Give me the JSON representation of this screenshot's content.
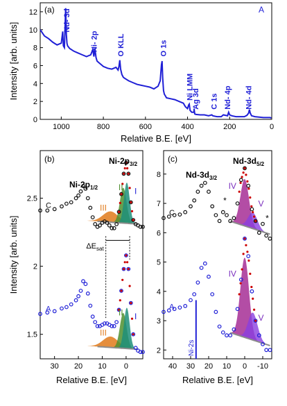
{
  "colors": {
    "blue": "#1f1fd6",
    "black": "#111111",
    "red": "#cc0000",
    "teal": "#1f8f7a",
    "orange": "#e07a1a",
    "green": "#4f8f2f",
    "purple": "#7b2fbe",
    "magenta": "#a0208f",
    "violet": "#8a3fe0",
    "gray": "#8c8c8c"
  },
  "chart_data": [
    {
      "id": "a",
      "type": "line",
      "panel_label": "(a)",
      "sample_label": "A",
      "xlabel": "Relative B.E. [eV]",
      "ylabel": "Intensity [arb. units]",
      "xlim": [
        1100,
        0
      ],
      "ylim": [
        0,
        13
      ],
      "xticks": [
        1000,
        800,
        600,
        400,
        200,
        0
      ],
      "yticks": [
        0,
        2,
        4,
        6,
        8,
        10,
        12
      ],
      "series": [
        {
          "color": "blue",
          "x": [
            1100,
            1080,
            1060,
            1040,
            1020,
            1000,
            993,
            990,
            985,
            982,
            979,
            976,
            973,
            970,
            960,
            940,
            920,
            900,
            880,
            860,
            850,
            845,
            840,
            835,
            830,
            820,
            800,
            780,
            760,
            750,
            740,
            730,
            726,
            722,
            718,
            712,
            705,
            700,
            680,
            660,
            640,
            620,
            600,
            580,
            560,
            540,
            530,
            524,
            521,
            518,
            514,
            510,
            505,
            500,
            480,
            460,
            440,
            420,
            410,
            400,
            395,
            392,
            388,
            380,
            370,
            369,
            366,
            360,
            340,
            320,
            300,
            285,
            280,
            270,
            260,
            240,
            230,
            210,
            205,
            200,
            190,
            170,
            150,
            130,
            118,
            110,
            106,
            102,
            96,
            80,
            60,
            40,
            20,
            8,
            2
          ],
          "y": [
            10.0,
            9.3,
            9.0,
            8.6,
            8.3,
            8.5,
            9.8,
            8.2,
            8.0,
            10.2,
            12.4,
            9.5,
            8.5,
            8.2,
            7.9,
            7.6,
            7.4,
            7.2,
            7.0,
            7.2,
            7.8,
            7.0,
            7.9,
            6.9,
            6.5,
            6.3,
            5.9,
            5.7,
            5.6,
            5.7,
            5.8,
            5.5,
            5.9,
            6.6,
            5.6,
            5.0,
            4.7,
            4.6,
            4.3,
            4.1,
            3.9,
            3.8,
            3.7,
            3.6,
            3.4,
            3.7,
            4.3,
            6.1,
            6.5,
            4.6,
            3.2,
            2.8,
            2.6,
            2.4,
            2.3,
            2.2,
            2.0,
            1.8,
            1.4,
            1.2,
            1.6,
            1.7,
            1.0,
            0.8,
            0.8,
            1.2,
            0.6,
            0.55,
            0.5,
            0.5,
            0.4,
            0.5,
            0.4,
            0.35,
            0.3,
            0.3,
            0.5,
            0.4,
            0.8,
            0.5,
            0.4,
            0.3,
            0.3,
            0.3,
            0.45,
            0.7,
            1.1,
            0.7,
            0.4,
            0.3,
            0.25,
            0.2,
            0.2,
            0.2,
            0.15
          ]
        }
      ],
      "annotations": [
        {
          "text": "Nd- 3d",
          "x": 975,
          "y": 9.7
        },
        {
          "text": "Ni- 2p",
          "x": 845,
          "y": 7.5
        },
        {
          "text": "O KLL",
          "x": 718,
          "y": 7.0
        },
        {
          "text": "O 1s",
          "x": 515,
          "y": 7.0
        },
        {
          "text": "Ni LMM",
          "x": 390,
          "y": 2.1
        },
        {
          "text": "Ag 3d",
          "x": 362,
          "y": 1.1
        },
        {
          "text": "C 1s",
          "x": 275,
          "y": 1.1
        },
        {
          "text": "Nd- 4p",
          "x": 210,
          "y": 1.1
        },
        {
          "text": "Nd- 4d",
          "x": 110,
          "y": 1.1
        }
      ]
    },
    {
      "id": "b",
      "type": "scatter",
      "panel_label": "(b)",
      "xlabel": "Relative B.E. [eV]",
      "ylabel": "Intensity [arb. units]",
      "xlim": [
        36,
        -7
      ],
      "ylim": [
        1.32,
        2.85
      ],
      "xticks": [
        30,
        20,
        10,
        0
      ],
      "yticks": [
        1.5,
        2.0,
        2.5
      ],
      "title_main": "Ni-2p",
      "title_main_sub": "3/2",
      "title_left": "Ni-2p",
      "title_left_sub": "1/2",
      "delta_label": "ΔE",
      "delta_sub": "sat",
      "delta_range": [
        8.5,
        -1.5
      ],
      "delta_y": 2.19,
      "peak_labels": [
        "III",
        "II",
        "I"
      ],
      "series": [
        {
          "name": "C",
          "color": "black",
          "x": [
            36,
            33,
            30,
            27,
            25,
            23,
            21,
            20,
            19,
            18,
            17,
            16,
            15,
            14,
            13,
            12,
            11,
            10,
            9,
            8,
            7,
            6,
            5,
            4,
            3,
            2,
            1,
            0,
            -1,
            -2,
            -3,
            -4,
            -5,
            -6,
            -7
          ],
          "y": [
            2.41,
            2.41,
            2.42,
            2.44,
            2.46,
            2.47,
            2.5,
            2.52,
            2.55,
            2.59,
            2.57,
            2.5,
            2.43,
            2.36,
            2.31,
            2.29,
            2.3,
            2.32,
            2.33,
            2.32,
            2.3,
            2.28,
            2.28,
            2.31,
            2.4,
            2.53,
            2.68,
            2.76,
            2.68,
            2.47,
            2.34,
            2.31,
            2.3,
            2.29,
            2.29
          ]
        },
        {
          "name": "A",
          "color": "blue",
          "x": [
            36,
            33,
            30,
            27,
            25,
            23,
            21,
            20,
            19,
            18,
            17,
            16,
            15,
            14,
            13,
            12,
            11,
            10,
            9,
            8,
            7,
            6,
            5,
            4,
            3,
            2,
            1,
            0,
            -1,
            -2,
            -3,
            -4,
            -5,
            -6,
            -7
          ],
          "y": [
            1.65,
            1.66,
            1.67,
            1.69,
            1.7,
            1.72,
            1.75,
            1.78,
            1.82,
            1.89,
            1.87,
            1.8,
            1.71,
            1.63,
            1.59,
            1.56,
            1.56,
            1.57,
            1.58,
            1.58,
            1.57,
            1.56,
            1.56,
            1.59,
            1.68,
            1.82,
            1.98,
            2.08,
            1.98,
            1.73,
            1.5,
            1.4,
            1.38,
            1.37,
            1.37
          ]
        }
      ],
      "components": [
        {
          "name": "III",
          "color": "orange",
          "center": 6.5,
          "width": 3.2,
          "amp": 0.08
        },
        {
          "name": "II",
          "color": "green",
          "center": 1.2,
          "width": 1.4,
          "amp": 0.26
        },
        {
          "name": "I",
          "color": "teal",
          "center": -0.3,
          "width": 1.2,
          "amp": 0.3
        }
      ]
    },
    {
      "id": "c",
      "type": "scatter",
      "panel_label": "(c)",
      "xlabel": "Relative B.E. [eV]",
      "xlim": [
        45,
        -15
      ],
      "ylim": [
        1.7,
        8.8
      ],
      "xticks": [
        40,
        30,
        20,
        10,
        0,
        -10
      ],
      "yticks": [
        2,
        3,
        4,
        5,
        6,
        7,
        8
      ],
      "title_main": "Nd-3d",
      "title_main_sub": "5/2",
      "title_left": "Nd-3d",
      "title_left_sub": "3/2",
      "peak_labels": [
        "IV",
        "V"
      ],
      "marker_label": "Ni-2s",
      "marker_x": 27,
      "series": [
        {
          "name": "C",
          "color": "black",
          "x": [
            45,
            42,
            39,
            36,
            33,
            30,
            28,
            26,
            24,
            22,
            20,
            18,
            16,
            14,
            12,
            10,
            8,
            6,
            4,
            2,
            0,
            -2,
            -4,
            -6,
            -8,
            -10,
            -12,
            -14
          ],
          "y": [
            6.5,
            6.55,
            6.6,
            6.62,
            6.7,
            6.9,
            7.1,
            7.4,
            7.6,
            7.7,
            7.4,
            6.9,
            6.6,
            6.4,
            6.7,
            6.6,
            6.4,
            6.5,
            7.0,
            7.8,
            8.2,
            7.6,
            6.8,
            6.4,
            6.0,
            6.3,
            5.9,
            5.8
          ]
        },
        {
          "name": "A",
          "color": "blue",
          "x": [
            45,
            42,
            39,
            36,
            33,
            30,
            28,
            26,
            24,
            22,
            20,
            18,
            16,
            14,
            12,
            10,
            8,
            6,
            4,
            2,
            0,
            -2,
            -4,
            -6,
            -8,
            -10,
            -12,
            -14
          ],
          "y": [
            3.3,
            3.35,
            3.4,
            3.45,
            3.5,
            3.7,
            3.9,
            4.3,
            4.8,
            4.95,
            4.5,
            3.9,
            3.3,
            2.8,
            2.6,
            2.5,
            2.5,
            2.7,
            3.4,
            4.4,
            5.8,
            5.2,
            4.0,
            3.0,
            2.5,
            2.2,
            2.0,
            2.0
          ]
        }
      ],
      "components": [
        {
          "name": "IV",
          "color": "magenta",
          "center": 0.0,
          "width": 2.4,
          "amp": 1.6
        },
        {
          "name": "V",
          "color": "violet",
          "center": -4.5,
          "width": 2.6,
          "amp": 0.55
        }
      ]
    }
  ]
}
